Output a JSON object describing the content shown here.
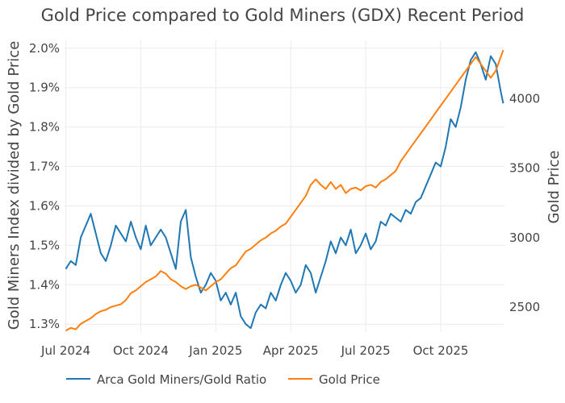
{
  "chart_data": {
    "type": "line",
    "title": "Gold Price compared to Gold Miners (GDX) Recent Period",
    "xlabel": "",
    "ylabel": "Gold Miners Index divided by Gold Price",
    "y2label": "Gold Price",
    "x_ticks": [
      "Jul 2024",
      "Oct 2024",
      "Jan 2025",
      "Apr 2025",
      "Jul 2025",
      "Oct 2025"
    ],
    "x_tick_positions": [
      0.5,
      3.5,
      6.5,
      9.5,
      12.5,
      15.5
    ],
    "xlim": [
      0.45,
      18.05
    ],
    "y_ticks": [
      "1.3%",
      "1.4%",
      "1.5%",
      "1.6%",
      "1.7%",
      "1.8%",
      "1.9%",
      "2.0%"
    ],
    "y_tick_values": [
      1.3,
      1.4,
      1.5,
      1.6,
      1.7,
      1.8,
      1.9,
      2.0
    ],
    "ylim": [
      1.28,
      2.02
    ],
    "y2_ticks": [
      "2500",
      "3000",
      "3500",
      "4000"
    ],
    "y2_tick_values": [
      2500,
      3000,
      3500,
      4000
    ],
    "y2lim": [
      2320,
      4420
    ],
    "grid": true,
    "legend_position": "bottom",
    "series": [
      {
        "name": "Arca Gold Miners/Gold Ratio",
        "axis": "left",
        "color": "#1f77b4",
        "x": [
          0.5,
          0.7,
          0.9,
          1.1,
          1.3,
          1.5,
          1.7,
          1.9,
          2.1,
          2.3,
          2.5,
          2.7,
          2.9,
          3.1,
          3.3,
          3.5,
          3.7,
          3.9,
          4.1,
          4.3,
          4.5,
          4.7,
          4.9,
          5.1,
          5.3,
          5.5,
          5.7,
          5.9,
          6.1,
          6.3,
          6.5,
          6.7,
          6.9,
          7.1,
          7.3,
          7.5,
          7.7,
          7.9,
          8.1,
          8.3,
          8.5,
          8.7,
          8.9,
          9.1,
          9.3,
          9.5,
          9.7,
          9.9,
          10.1,
          10.3,
          10.5,
          10.7,
          10.9,
          11.1,
          11.3,
          11.5,
          11.7,
          11.9,
          12.1,
          12.3,
          12.5,
          12.7,
          12.9,
          13.1,
          13.3,
          13.5,
          13.7,
          13.9,
          14.1,
          14.3,
          14.5,
          14.7,
          14.9,
          15.1,
          15.3,
          15.5,
          15.7,
          15.9,
          16.1,
          16.3,
          16.5,
          16.7,
          16.9,
          17.1,
          17.3,
          17.5,
          17.7,
          17.9,
          18.0
        ],
        "values": [
          1.44,
          1.46,
          1.45,
          1.52,
          1.55,
          1.58,
          1.53,
          1.48,
          1.46,
          1.5,
          1.55,
          1.53,
          1.51,
          1.56,
          1.52,
          1.49,
          1.55,
          1.5,
          1.52,
          1.54,
          1.52,
          1.48,
          1.44,
          1.56,
          1.59,
          1.47,
          1.42,
          1.38,
          1.4,
          1.43,
          1.41,
          1.36,
          1.38,
          1.35,
          1.38,
          1.32,
          1.3,
          1.29,
          1.33,
          1.35,
          1.34,
          1.38,
          1.36,
          1.4,
          1.43,
          1.41,
          1.38,
          1.4,
          1.45,
          1.43,
          1.38,
          1.42,
          1.46,
          1.51,
          1.48,
          1.52,
          1.5,
          1.54,
          1.48,
          1.5,
          1.53,
          1.49,
          1.51,
          1.56,
          1.55,
          1.58,
          1.57,
          1.56,
          1.59,
          1.58,
          1.61,
          1.62,
          1.65,
          1.68,
          1.71,
          1.7,
          1.75,
          1.82,
          1.8,
          1.85,
          1.92,
          1.97,
          1.99,
          1.96,
          1.92,
          1.98,
          1.96,
          1.89,
          1.86
        ]
      },
      {
        "name": "Gold Price",
        "axis": "right",
        "color": "#ff7f0e",
        "x": [
          0.5,
          0.7,
          0.9,
          1.1,
          1.3,
          1.5,
          1.7,
          1.9,
          2.1,
          2.3,
          2.5,
          2.7,
          2.9,
          3.1,
          3.3,
          3.5,
          3.7,
          3.9,
          4.1,
          4.3,
          4.5,
          4.7,
          4.9,
          5.1,
          5.3,
          5.5,
          5.7,
          5.9,
          6.1,
          6.3,
          6.5,
          6.7,
          6.9,
          7.1,
          7.3,
          7.5,
          7.7,
          7.9,
          8.1,
          8.3,
          8.5,
          8.7,
          8.9,
          9.1,
          9.3,
          9.5,
          9.7,
          9.9,
          10.1,
          10.3,
          10.5,
          10.7,
          10.9,
          11.1,
          11.3,
          11.5,
          11.7,
          11.9,
          12.1,
          12.3,
          12.5,
          12.7,
          12.9,
          13.1,
          13.3,
          13.5,
          13.7,
          13.9,
          14.1,
          14.3,
          14.5,
          14.7,
          14.9,
          15.1,
          15.3,
          15.5,
          15.7,
          15.9,
          16.1,
          16.3,
          16.5,
          16.7,
          16.9,
          17.1,
          17.3,
          17.5,
          17.7,
          17.9,
          18.0
        ],
        "values": [
          2330,
          2350,
          2340,
          2380,
          2400,
          2420,
          2450,
          2470,
          2480,
          2500,
          2510,
          2520,
          2550,
          2600,
          2620,
          2650,
          2680,
          2700,
          2720,
          2760,
          2740,
          2700,
          2680,
          2650,
          2630,
          2650,
          2660,
          2640,
          2620,
          2650,
          2680,
          2700,
          2740,
          2780,
          2800,
          2850,
          2900,
          2920,
          2950,
          2980,
          3000,
          3030,
          3050,
          3080,
          3100,
          3150,
          3200,
          3250,
          3300,
          3380,
          3420,
          3380,
          3350,
          3400,
          3350,
          3380,
          3320,
          3350,
          3360,
          3340,
          3370,
          3380,
          3360,
          3400,
          3420,
          3450,
          3480,
          3550,
          3600,
          3650,
          3700,
          3750,
          3800,
          3850,
          3900,
          3950,
          4000,
          4050,
          4100,
          4150,
          4200,
          4250,
          4300,
          4250,
          4200,
          4150,
          4200,
          4300,
          4350
        ]
      }
    ]
  }
}
